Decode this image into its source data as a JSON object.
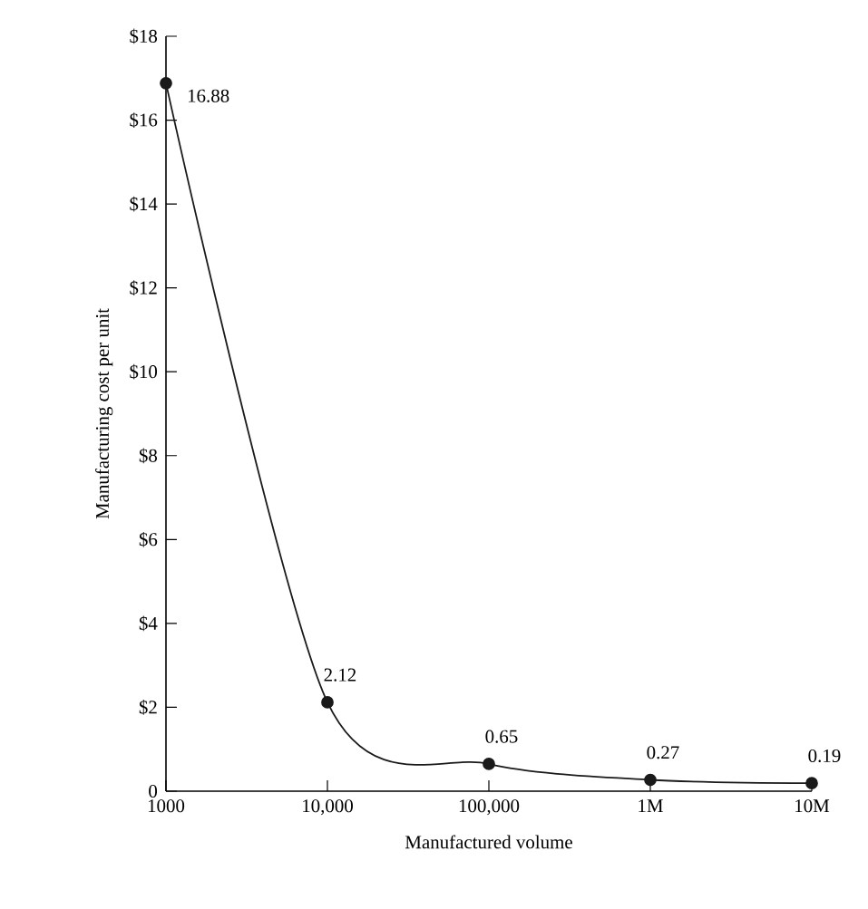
{
  "chart_data": {
    "type": "line",
    "xlabel": "Manufactured volume",
    "ylabel": "Manufacturing cost per unit",
    "categories": [
      "1000",
      "10,000",
      "100,000",
      "1M",
      "10M"
    ],
    "values": [
      16.88,
      2.12,
      0.65,
      0.27,
      0.19
    ],
    "color": "#1a1a1a",
    "marker": "circle",
    "line_style": "solid",
    "data_labels": true,
    "ylim": [
      0,
      18
    ],
    "yticks": [
      0,
      {
        "value": 2,
        "label": "$2"
      },
      {
        "value": 4,
        "label": "$4"
      },
      {
        "value": 6,
        "label": "$6"
      },
      {
        "value": 8,
        "label": "$8"
      },
      {
        "value": 10,
        "label": "$10"
      },
      {
        "value": 12,
        "label": "$12"
      },
      {
        "value": 14,
        "label": "$14"
      },
      {
        "value": 16,
        "label": "$16"
      },
      {
        "value": 18,
        "label": "$18"
      }
    ]
  }
}
